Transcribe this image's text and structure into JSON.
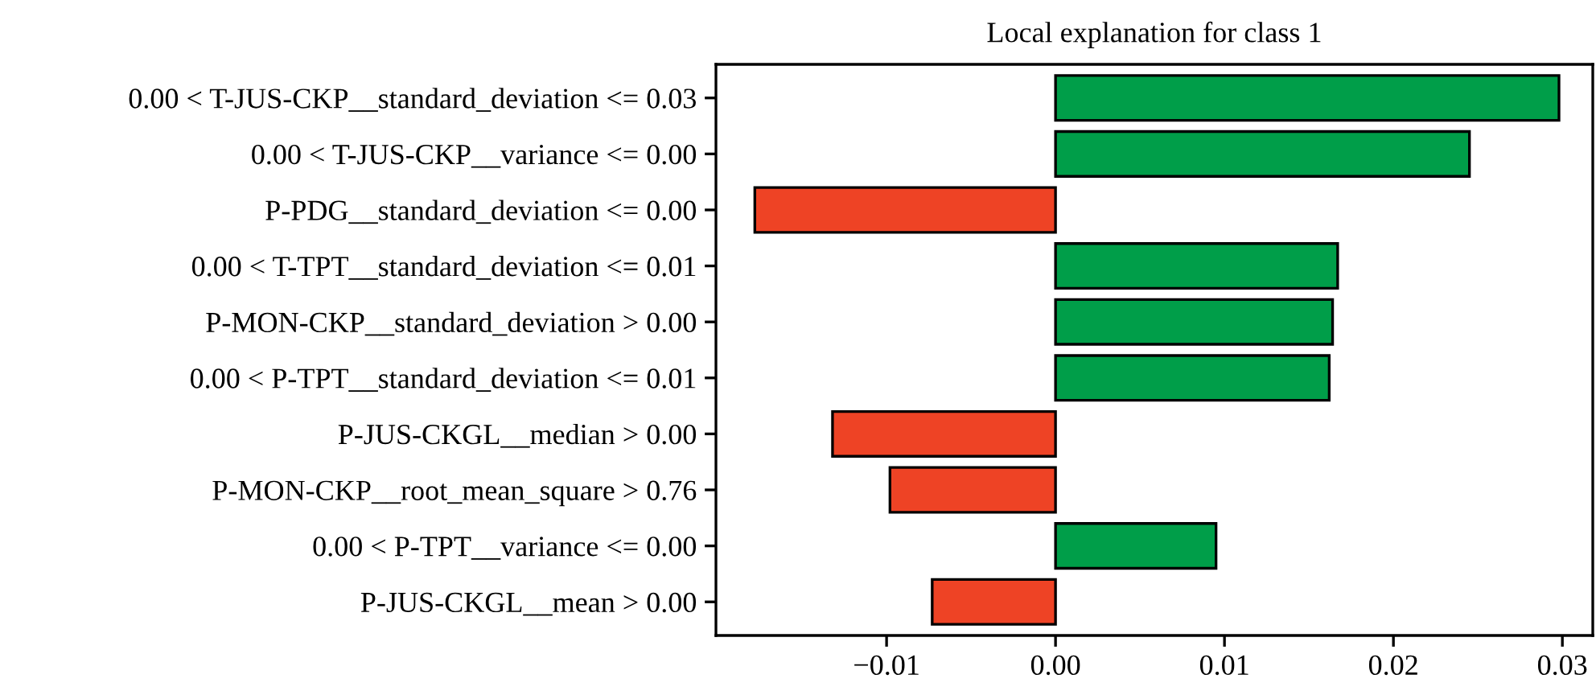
{
  "chart_data": {
    "type": "bar",
    "orientation": "horizontal",
    "title": "Local explanation for class 1",
    "categories": [
      "0.00 < T-JUS-CKP__standard_deviation <= 0.03",
      "0.00 < T-JUS-CKP__variance <= 0.00",
      "P-PDG__standard_deviation <= 0.00",
      "0.00 < T-TPT__standard_deviation <= 0.01",
      "P-MON-CKP__standard_deviation > 0.00",
      "0.00 < P-TPT__standard_deviation <= 0.01",
      "P-JUS-CKGL__median > 0.00",
      "P-MON-CKP__root_mean_square > 0.76",
      "0.00 < P-TPT__variance <= 0.00",
      "P-JUS-CKGL__mean > 0.00"
    ],
    "values": [
      0.0298,
      0.0245,
      -0.0178,
      0.0167,
      0.0164,
      0.0162,
      -0.0132,
      -0.0098,
      0.0095,
      -0.0073
    ],
    "colors": [
      "#009e49",
      "#009e49",
      "#ee4325",
      "#009e49",
      "#009e49",
      "#009e49",
      "#ee4325",
      "#ee4325",
      "#009e49",
      "#ee4325"
    ],
    "xlim": [
      -0.0201,
      0.0318
    ],
    "xticks": [
      {
        "value": -0.01,
        "label": "−0.01"
      },
      {
        "value": 0,
        "label": "0.00"
      },
      {
        "value": 0.01,
        "label": "0.01"
      },
      {
        "value": 0.02,
        "label": "0.02"
      },
      {
        "value": 0.03,
        "label": "0.03"
      }
    ],
    "grid": false,
    "legend": false
  }
}
